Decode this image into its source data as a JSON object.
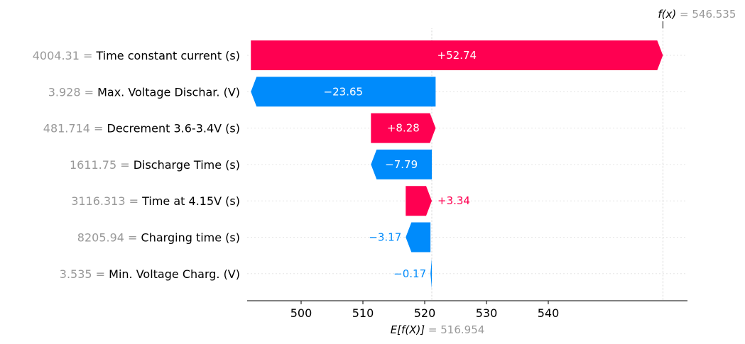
{
  "chart_data": {
    "type": "waterfall",
    "title": "",
    "base_value": 516.954,
    "base_label_prefix": "E[f(X)]",
    "base_label_value": "= 516.954",
    "output_value": 546.535,
    "output_label_prefix": "f(x)",
    "output_label_value": "= 546.535",
    "features": [
      {
        "name": "Time constant current (s)",
        "value": "4004.31",
        "contribution": 52.74,
        "label": "+52.74"
      },
      {
        "name": "Max. Voltage Dischar. (V)",
        "value": "3.928",
        "contribution": -23.65,
        "label": "−23.65"
      },
      {
        "name": "Decrement 3.6-3.4V (s)",
        "value": "481.714",
        "contribution": 8.28,
        "label": "+8.28"
      },
      {
        "name": "Discharge Time (s)",
        "value": "1611.75",
        "contribution": -7.79,
        "label": "−7.79"
      },
      {
        "name": "Time at 4.15V (s)",
        "value": "3116.313",
        "contribution": 3.34,
        "label": "+3.34"
      },
      {
        "name": "Charging time (s)",
        "value": "8205.94",
        "contribution": -3.17,
        "label": "−3.17"
      },
      {
        "name": "Min. Voltage Charg. (V)",
        "value": "3.535",
        "contribution": -0.17,
        "label": "−0.17"
      }
    ],
    "xticks": [
      500,
      510,
      520,
      530,
      540
    ],
    "tick_labels": [
      "500",
      "510",
      "520",
      "530",
      "540"
    ],
    "colors": {
      "positive": "#ff0051",
      "negative": "#008bfb",
      "value_gray": "#999999"
    }
  }
}
